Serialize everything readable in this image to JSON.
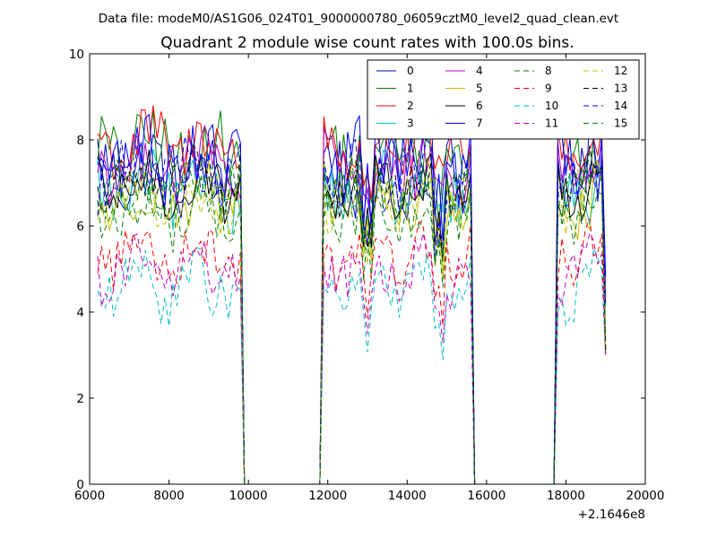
{
  "chart_data": {
    "type": "line",
    "suptitle": "Data file: modeM0/AS1G06_024T01_9000000780_06059cztM0_level2_quad_clean.evt",
    "title": "Quadrant 2 module wise count rates with 100.0s bins.",
    "xlabel": "",
    "ylabel": "",
    "x_offset_label": "+2.1646e8",
    "xlim": [
      6000,
      20000
    ],
    "ylim": [
      0,
      10
    ],
    "xticks": [
      6000,
      8000,
      10000,
      12000,
      14000,
      16000,
      18000,
      20000
    ],
    "yticks": [
      0,
      2,
      4,
      6,
      8,
      10
    ],
    "legend_position": "top-right",
    "legend_columns": 4,
    "segments": [
      {
        "start": 6200,
        "end": 9800,
        "step": 100
      },
      {
        "start": 11900,
        "end": 15600,
        "step": 100
      },
      {
        "start": 17800,
        "end": 19000,
        "step": 100
      }
    ],
    "gaps_value": 0,
    "series": [
      {
        "name": "0",
        "color": "#0000bf",
        "dash": "solid",
        "level": 7.3,
        "amp": 0.9
      },
      {
        "name": "1",
        "color": "#008000",
        "dash": "solid",
        "level": 7.8,
        "amp": 0.8
      },
      {
        "name": "2",
        "color": "#ff0000",
        "dash": "solid",
        "level": 7.9,
        "amp": 0.7
      },
      {
        "name": "3",
        "color": "#00bfbf",
        "dash": "solid",
        "level": 6.8,
        "amp": 0.7
      },
      {
        "name": "4",
        "color": "#bf00bf",
        "dash": "solid",
        "level": 7.4,
        "amp": 0.7
      },
      {
        "name": "5",
        "color": "#bfbf00",
        "dash": "solid",
        "level": 6.6,
        "amp": 0.7
      },
      {
        "name": "6",
        "color": "#000000",
        "dash": "solid",
        "level": 6.9,
        "amp": 0.6
      },
      {
        "name": "7",
        "color": "#0000ff",
        "dash": "solid",
        "level": 7.6,
        "amp": 0.9
      },
      {
        "name": "8",
        "color": "#008000",
        "dash": "dashed",
        "level": 6.3,
        "amp": 0.6
      },
      {
        "name": "9",
        "color": "#ff0000",
        "dash": "dashed",
        "level": 5.4,
        "amp": 0.6
      },
      {
        "name": "10",
        "color": "#00bfbf",
        "dash": "dashed",
        "level": 4.6,
        "amp": 0.6
      },
      {
        "name": "11",
        "color": "#bf00bf",
        "dash": "dashed",
        "level": 5.0,
        "amp": 0.6
      },
      {
        "name": "12",
        "color": "#bfbf00",
        "dash": "dashed",
        "level": 6.7,
        "amp": 0.7
      },
      {
        "name": "13",
        "color": "#000000",
        "dash": "dashed",
        "level": 7.0,
        "amp": 0.6
      },
      {
        "name": "14",
        "color": "#0000ff",
        "dash": "dashed",
        "level": 7.2,
        "amp": 0.7
      },
      {
        "name": "15",
        "color": "#008000",
        "dash": "dashed",
        "level": 6.9,
        "amp": 0.6
      }
    ]
  }
}
